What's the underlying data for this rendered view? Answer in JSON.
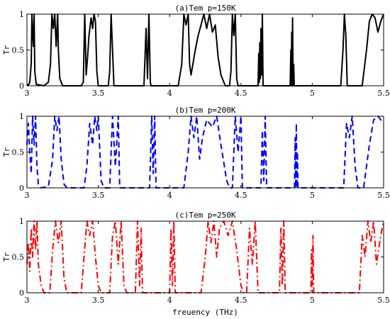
{
  "chart_data": [
    {
      "type": "line",
      "title": "(a)Tem p=150K",
      "xlabel": "",
      "ylabel": "Tr",
      "xlim": [
        3,
        5.5
      ],
      "ylim": [
        0,
        1
      ],
      "xticks": [
        "3",
        "3.5",
        "4",
        "4.5",
        "5",
        "5.5"
      ],
      "yticks": [
        "0",
        "0.5",
        "1"
      ],
      "series": [
        {
          "color": "#000000",
          "line_style": "solid",
          "points": [
            [
              3.0,
              0.02
            ],
            [
              3.01,
              0.01
            ],
            [
              3.02,
              0.05
            ],
            [
              3.03,
              0.3
            ],
            [
              3.035,
              1.0
            ],
            [
              3.04,
              0.75
            ],
            [
              3.045,
              0.55
            ],
            [
              3.05,
              1.0
            ],
            [
              3.055,
              0.2
            ],
            [
              3.065,
              0.02
            ],
            [
              3.12,
              0.0
            ],
            [
              3.15,
              0.05
            ],
            [
              3.165,
              0.3
            ],
            [
              3.175,
              1.0
            ],
            [
              3.185,
              0.8
            ],
            [
              3.195,
              1.0
            ],
            [
              3.205,
              0.55
            ],
            [
              3.215,
              1.0
            ],
            [
              3.22,
              0.5
            ],
            [
              3.23,
              0.1
            ],
            [
              3.25,
              0.0
            ],
            [
              3.38,
              0.0
            ],
            [
              3.395,
              0.05
            ],
            [
              3.405,
              1.0
            ],
            [
              3.415,
              0.15
            ],
            [
              3.425,
              0.4
            ],
            [
              3.435,
              0.7
            ],
            [
              3.45,
              0.95
            ],
            [
              3.46,
              0.8
            ],
            [
              3.47,
              1.0
            ],
            [
              3.48,
              0.9
            ],
            [
              3.49,
              0.2
            ],
            [
              3.5,
              0.0
            ],
            [
              3.57,
              0.0
            ],
            [
              3.58,
              0.2
            ],
            [
              3.59,
              1.0
            ],
            [
              3.6,
              0.5
            ],
            [
              3.61,
              0.0
            ],
            [
              3.82,
              0.0
            ],
            [
              3.835,
              0.8
            ],
            [
              3.845,
              0.1
            ],
            [
              3.855,
              1.0
            ],
            [
              3.865,
              0.05
            ],
            [
              3.87,
              0.0
            ],
            [
              4.06,
              0.0
            ],
            [
              4.085,
              0.3
            ],
            [
              4.1,
              1.0
            ],
            [
              4.115,
              0.85
            ],
            [
              4.13,
              1.0
            ],
            [
              4.14,
              0.3
            ],
            [
              4.15,
              0.15
            ],
            [
              4.18,
              0.5
            ],
            [
              4.2,
              0.7
            ],
            [
              4.22,
              0.85
            ],
            [
              4.24,
              1.0
            ],
            [
              4.26,
              0.8
            ],
            [
              4.28,
              1.0
            ],
            [
              4.3,
              0.75
            ],
            [
              4.32,
              0.85
            ],
            [
              4.34,
              0.4
            ],
            [
              4.36,
              0.15
            ],
            [
              4.38,
              0.05
            ],
            [
              4.39,
              0.0
            ],
            [
              4.42,
              0.0
            ],
            [
              4.43,
              0.2
            ],
            [
              4.44,
              1.0
            ],
            [
              4.45,
              0.7
            ],
            [
              4.46,
              1.0
            ],
            [
              4.47,
              0.1
            ],
            [
              4.48,
              0.0
            ],
            [
              4.62,
              0.0
            ],
            [
              4.625,
              0.45
            ],
            [
              4.628,
              0.05
            ],
            [
              4.632,
              0.6
            ],
            [
              4.636,
              0.1
            ],
            [
              4.64,
              0.8
            ],
            [
              4.645,
              0.15
            ],
            [
              4.65,
              1.0
            ],
            [
              4.655,
              0.0
            ],
            [
              4.845,
              0.0
            ],
            [
              4.85,
              0.5
            ],
            [
              4.853,
              0.0
            ],
            [
              4.856,
              0.75
            ],
            [
              4.859,
              0.0
            ],
            [
              4.862,
              0.95
            ],
            [
              4.866,
              0.0
            ],
            [
              4.87,
              0.3
            ],
            [
              4.874,
              0.0
            ],
            [
              5.2,
              0.0
            ],
            [
              5.215,
              0.5
            ],
            [
              5.225,
              1.0
            ],
            [
              5.235,
              0.7
            ],
            [
              5.245,
              0.0
            ],
            [
              5.35,
              0.0
            ],
            [
              5.38,
              0.5
            ],
            [
              5.4,
              0.9
            ],
            [
              5.42,
              1.0
            ],
            [
              5.44,
              0.95
            ],
            [
              5.46,
              0.75
            ],
            [
              5.48,
              0.9
            ],
            [
              5.5,
              1.0
            ]
          ]
        }
      ]
    },
    {
      "type": "line",
      "title": "(b)Tem p=200K",
      "xlabel": "",
      "ylabel": "Tr",
      "xlim": [
        3,
        5.5
      ],
      "ylim": [
        0,
        1
      ],
      "xticks": [
        "3",
        "3.5",
        "4",
        "4.5",
        "5",
        "5.5"
      ],
      "yticks": [
        "0",
        "0.5",
        "1"
      ],
      "series": [
        {
          "color": "#0000ff",
          "line_style": "dashed",
          "points": [
            [
              3.0,
              0.6
            ],
            [
              3.01,
              0.9
            ],
            [
              3.02,
              0.5
            ],
            [
              3.03,
              0.2
            ],
            [
              3.04,
              1.0
            ],
            [
              3.05,
              0.6
            ],
            [
              3.06,
              1.0
            ],
            [
              3.07,
              0.3
            ],
            [
              3.08,
              0.05
            ],
            [
              3.1,
              0.0
            ],
            [
              3.15,
              0.02
            ],
            [
              3.18,
              0.4
            ],
            [
              3.195,
              1.0
            ],
            [
              3.21,
              0.8
            ],
            [
              3.225,
              1.0
            ],
            [
              3.24,
              0.4
            ],
            [
              3.26,
              0.05
            ],
            [
              3.28,
              0.0
            ],
            [
              3.4,
              0.0
            ],
            [
              3.42,
              0.3
            ],
            [
              3.44,
              0.9
            ],
            [
              3.46,
              0.6
            ],
            [
              3.475,
              1.0
            ],
            [
              3.49,
              0.8
            ],
            [
              3.5,
              1.0
            ],
            [
              3.52,
              0.1
            ],
            [
              3.54,
              0.0
            ],
            [
              3.58,
              0.0
            ],
            [
              3.6,
              1.0
            ],
            [
              3.62,
              0.3
            ],
            [
              3.64,
              1.0
            ],
            [
              3.65,
              0.0
            ],
            [
              3.86,
              0.0
            ],
            [
              3.875,
              1.0
            ],
            [
              3.885,
              0.2
            ],
            [
              3.895,
              1.0
            ],
            [
              3.905,
              0.0
            ],
            [
              4.1,
              0.0
            ],
            [
              4.13,
              0.5
            ],
            [
              4.15,
              1.0
            ],
            [
              4.17,
              0.7
            ],
            [
              4.19,
              1.0
            ],
            [
              4.21,
              0.4
            ],
            [
              4.23,
              0.7
            ],
            [
              4.26,
              0.95
            ],
            [
              4.3,
              0.85
            ],
            [
              4.33,
              1.0
            ],
            [
              4.36,
              0.6
            ],
            [
              4.4,
              0.1
            ],
            [
              4.42,
              0.0
            ],
            [
              4.44,
              0.0
            ],
            [
              4.46,
              1.0
            ],
            [
              4.48,
              0.5
            ],
            [
              4.5,
              1.0
            ],
            [
              4.51,
              0.0
            ],
            [
              4.64,
              0.0
            ],
            [
              4.65,
              0.8
            ],
            [
              4.66,
              0.1
            ],
            [
              4.67,
              1.0
            ],
            [
              4.68,
              0.0
            ],
            [
              4.875,
              0.0
            ],
            [
              4.88,
              0.7
            ],
            [
              4.884,
              0.0
            ],
            [
              4.888,
              0.9
            ],
            [
              4.892,
              0.0
            ],
            [
              4.896,
              0.5
            ],
            [
              4.9,
              0.0
            ],
            [
              5.22,
              0.0
            ],
            [
              5.24,
              0.9
            ],
            [
              5.26,
              0.7
            ],
            [
              5.28,
              1.0
            ],
            [
              5.3,
              0.3
            ],
            [
              5.32,
              0.0
            ],
            [
              5.36,
              0.0
            ],
            [
              5.4,
              0.6
            ],
            [
              5.43,
              0.95
            ],
            [
              5.46,
              1.0
            ],
            [
              5.5,
              0.9
            ]
          ]
        }
      ]
    },
    {
      "type": "line",
      "title": "(c)Tem p=250K",
      "xlabel": "freuency (THz)",
      "ylabel": "Tr",
      "xlim": [
        3,
        5.5
      ],
      "ylim": [
        0,
        1
      ],
      "xticks": [
        "3",
        "3.5",
        "4",
        "4.5",
        "5",
        "5.5"
      ],
      "yticks": [
        "0",
        "0.5",
        "1"
      ],
      "series": [
        {
          "color": "#ff0000",
          "line_style": "dashdot",
          "points": [
            [
              3.0,
              0.4
            ],
            [
              3.01,
              0.7
            ],
            [
              3.02,
              0.3
            ],
            [
              3.03,
              0.9
            ],
            [
              3.04,
              0.5
            ],
            [
              3.05,
              1.0
            ],
            [
              3.06,
              0.6
            ],
            [
              3.07,
              1.0
            ],
            [
              3.08,
              0.4
            ],
            [
              3.1,
              0.1
            ],
            [
              3.12,
              0.0
            ],
            [
              3.16,
              0.0
            ],
            [
              3.18,
              0.6
            ],
            [
              3.2,
              1.0
            ],
            [
              3.22,
              0.7
            ],
            [
              3.24,
              1.0
            ],
            [
              3.26,
              0.2
            ],
            [
              3.28,
              0.0
            ],
            [
              3.38,
              0.0
            ],
            [
              3.4,
              0.5
            ],
            [
              3.42,
              1.0
            ],
            [
              3.44,
              0.8
            ],
            [
              3.46,
              1.0
            ],
            [
              3.48,
              0.5
            ],
            [
              3.5,
              0.1
            ],
            [
              3.52,
              0.0
            ],
            [
              3.58,
              0.0
            ],
            [
              3.6,
              0.8
            ],
            [
              3.62,
              1.0
            ],
            [
              3.64,
              0.4
            ],
            [
              3.66,
              1.0
            ],
            [
              3.68,
              0.1
            ],
            [
              3.7,
              0.0
            ],
            [
              3.76,
              0.0
            ],
            [
              3.775,
              1.0
            ],
            [
              3.79,
              0.1
            ],
            [
              3.8,
              0.9
            ],
            [
              3.81,
              0.0
            ],
            [
              4.0,
              0.0
            ],
            [
              4.01,
              0.9
            ],
            [
              4.02,
              0.1
            ],
            [
              4.03,
              1.0
            ],
            [
              4.04,
              0.0
            ],
            [
              4.22,
              0.0
            ],
            [
              4.25,
              0.5
            ],
            [
              4.27,
              1.0
            ],
            [
              4.29,
              0.7
            ],
            [
              4.31,
              1.0
            ],
            [
              4.33,
              0.5
            ],
            [
              4.35,
              0.9
            ],
            [
              4.38,
              1.0
            ],
            [
              4.41,
              0.8
            ],
            [
              4.44,
              1.0
            ],
            [
              4.47,
              0.6
            ],
            [
              4.5,
              0.1
            ],
            [
              4.52,
              0.0
            ],
            [
              4.54,
              0.0
            ],
            [
              4.56,
              0.9
            ],
            [
              4.58,
              0.4
            ],
            [
              4.6,
              1.0
            ],
            [
              4.62,
              0.0
            ],
            [
              4.77,
              0.0
            ],
            [
              4.78,
              0.9
            ],
            [
              4.79,
              0.1
            ],
            [
              4.8,
              1.0
            ],
            [
              4.81,
              0.0
            ],
            [
              4.99,
              0.0
            ],
            [
              4.995,
              0.6
            ],
            [
              5.0,
              0.1
            ],
            [
              5.005,
              0.8
            ],
            [
              5.01,
              0.0
            ],
            [
              5.33,
              0.0
            ],
            [
              5.35,
              0.8
            ],
            [
              5.37,
              0.5
            ],
            [
              5.39,
              1.0
            ],
            [
              5.41,
              0.7
            ],
            [
              5.43,
              1.0
            ],
            [
              5.45,
              0.4
            ],
            [
              5.48,
              0.8
            ],
            [
              5.5,
              1.0
            ]
          ]
        }
      ]
    }
  ]
}
